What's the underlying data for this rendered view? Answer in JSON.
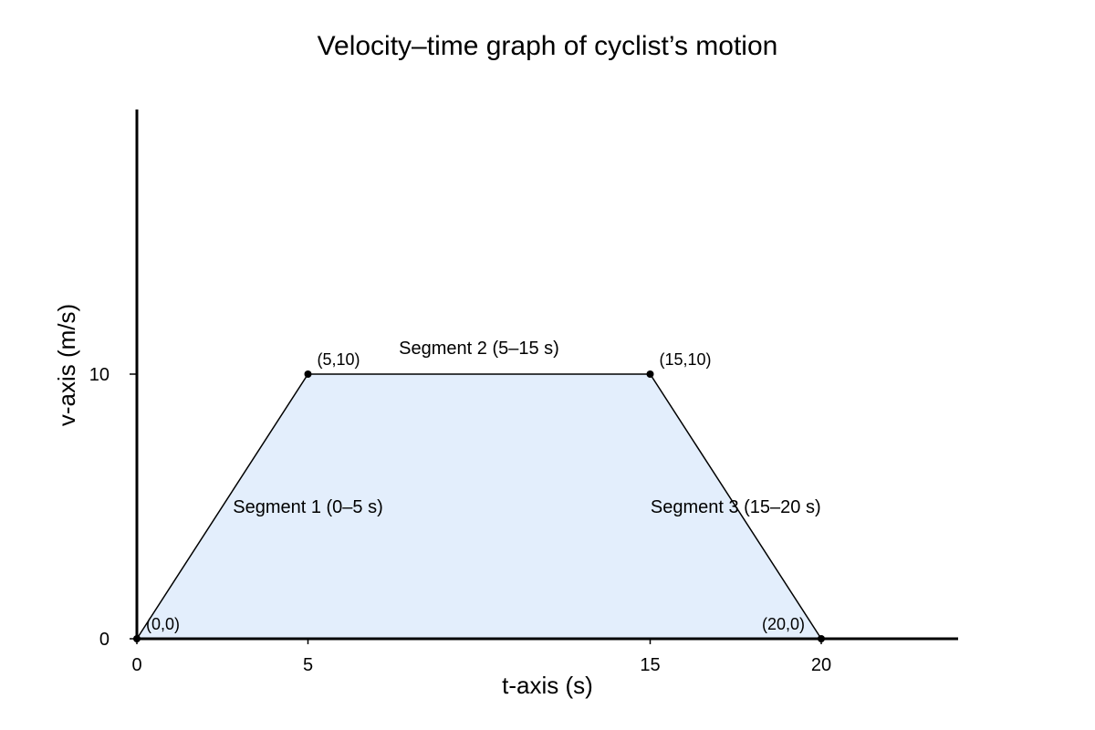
{
  "chart_data": {
    "type": "area",
    "title": "Velocity–time graph of cyclist’s motion",
    "xlabel": "t-axis (s)",
    "ylabel": "v-axis (m/s)",
    "xlim": [
      0,
      24
    ],
    "ylim": [
      0,
      20
    ],
    "x_ticks": [
      {
        "value": 0,
        "label": "0"
      },
      {
        "value": 5,
        "label": "5"
      },
      {
        "value": 15,
        "label": "15"
      },
      {
        "value": 20,
        "label": "20"
      }
    ],
    "y_ticks": [
      {
        "value": 0,
        "label": "0"
      },
      {
        "value": 10,
        "label": "10"
      }
    ],
    "grid": false,
    "series": [
      {
        "points": [
          {
            "x": 0,
            "y": 0
          },
          {
            "x": 5,
            "y": 10
          },
          {
            "x": 15,
            "y": 10
          },
          {
            "x": 20,
            "y": 0
          }
        ],
        "fill_color": "#e3eefc",
        "line_color": "#000000"
      }
    ],
    "point_labels": [
      {
        "x": 0,
        "y": 0,
        "label": "(0,0)"
      },
      {
        "x": 5,
        "y": 10,
        "label": "(5,10)"
      },
      {
        "x": 15,
        "y": 10,
        "label": "(15,10)"
      },
      {
        "x": 20,
        "y": 0,
        "label": "(20,0)"
      }
    ],
    "segment_labels": [
      {
        "label": "Segment 1 (0–5 s)",
        "x": 5,
        "y": 5
      },
      {
        "label": "Segment 2 (5–15 s)",
        "x": 10,
        "y": 11
      },
      {
        "label": "Segment 3 (15–20 s)",
        "x": 17.5,
        "y": 5
      }
    ]
  }
}
